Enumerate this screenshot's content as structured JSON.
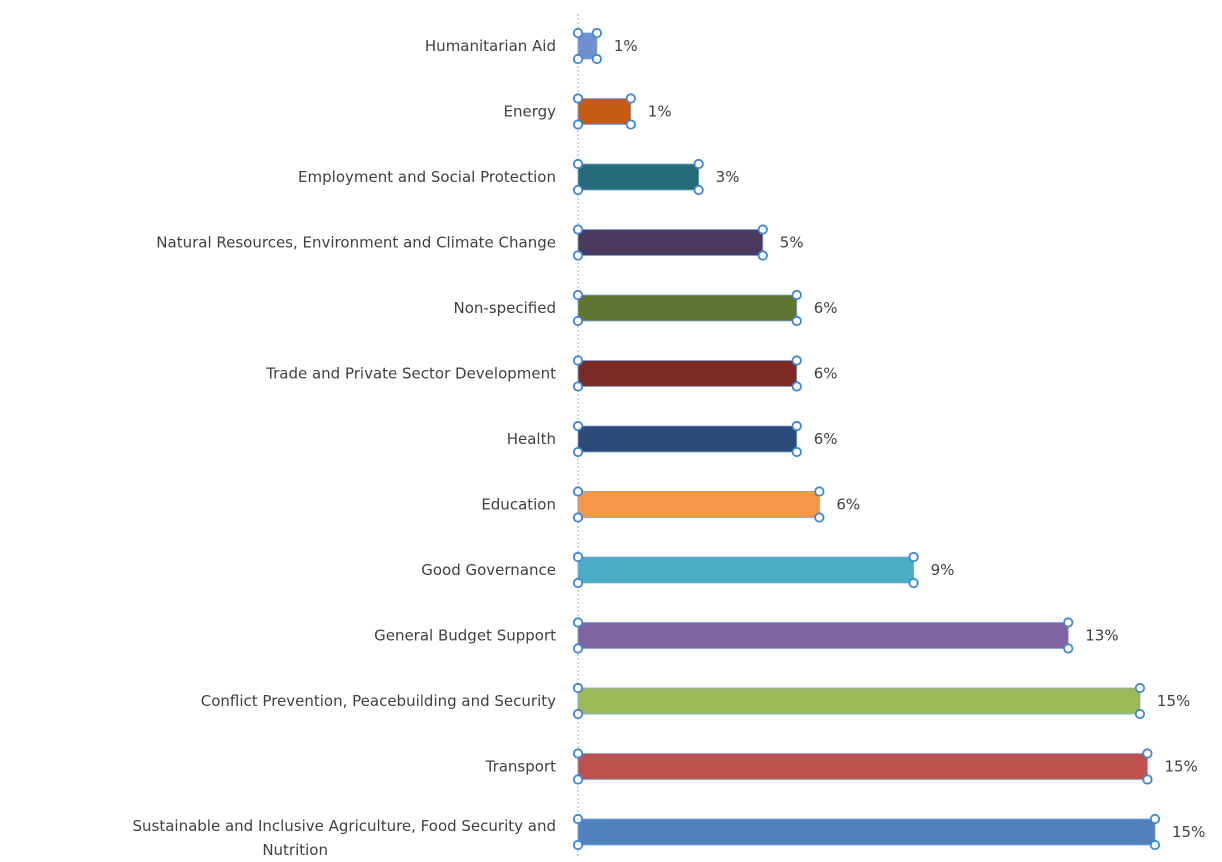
{
  "chart_data": {
    "type": "bar",
    "orientation": "horizontal",
    "categories": [
      "Humanitarian Aid",
      "Energy",
      "Employment and Social Protection",
      "Natural Resources, Environment and Climate Change",
      "Non-specified",
      "Trade and Private Sector Development",
      "Health",
      "Education",
      "Good Governance",
      "General Budget Support",
      "Conflict Prevention, Peacebuilding and Security",
      "Transport",
      "Sustainable and Inclusive Agriculture, Food Security and Nutrition"
    ],
    "values": [
      0.5,
      1.4,
      3.2,
      4.9,
      5.8,
      5.8,
      5.8,
      6.4,
      8.9,
      13.0,
      14.9,
      15.1,
      15.3
    ],
    "value_labels": [
      "1%",
      "1%",
      "3%",
      "5%",
      "6%",
      "6%",
      "6%",
      "6%",
      "9%",
      "13%",
      "15%",
      "15%",
      "15%"
    ],
    "colors": [
      "#6f8fd0",
      "#c55a11",
      "#256b7a",
      "#4a3a5e",
      "#5f7430",
      "#7c2a25",
      "#2b4a78",
      "#f79646",
      "#4bacc6",
      "#8064a2",
      "#9bbb59",
      "#c0504d",
      "#4f81bd"
    ],
    "xlim": [
      0,
      15.3
    ],
    "grid": false,
    "legend": "none",
    "title": "",
    "xlabel": "",
    "ylabel": ""
  }
}
